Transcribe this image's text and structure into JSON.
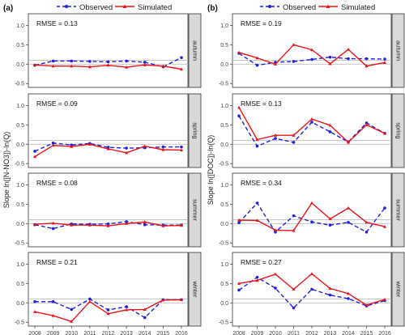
{
  "legend": {
    "observed_label": "Observed",
    "simulated_label": "Simulated",
    "observed_color": "#1f1fe0",
    "simulated_color": "#e8141a"
  },
  "chart_data": [
    {
      "type": "line",
      "panel_label": "(a)",
      "ylabel": "Slope ln([N-NO3])-ln(Q)",
      "x": [
        2008,
        2009,
        2010,
        2011,
        2012,
        2013,
        2014,
        2015,
        2016
      ],
      "ylim": [
        -0.6,
        1.3
      ],
      "yticks": [
        -0.5,
        0.0,
        0.5,
        1.0
      ],
      "ytick_labels": [
        "-0.5",
        "0.0",
        "0.5",
        "1.0"
      ],
      "grid": false,
      "reference_lines": [
        0.0,
        0.1
      ],
      "legend_position": "top",
      "facets": [
        {
          "season": "autumn",
          "rmse": "RMSE = 0.13",
          "series": [
            {
              "name": "Observed",
              "values": [
                -0.03,
                0.08,
                0.08,
                0.07,
                0.06,
                0.08,
                0.05,
                -0.07,
                0.17
              ]
            },
            {
              "name": "Simulated",
              "values": [
                -0.02,
                -0.05,
                -0.05,
                -0.07,
                -0.03,
                -0.08,
                -0.02,
                -0.05,
                -0.13
              ]
            }
          ]
        },
        {
          "season": "spring",
          "rmse": "RMSE = 0.09",
          "series": [
            {
              "name": "Observed",
              "values": [
                -0.18,
                0.03,
                -0.02,
                0.02,
                -0.08,
                -0.1,
                -0.09,
                -0.07,
                -0.07
              ]
            },
            {
              "name": "Simulated",
              "values": [
                -0.32,
                -0.03,
                -0.06,
                0.0,
                -0.12,
                -0.22,
                -0.05,
                -0.14,
                -0.15
              ]
            }
          ]
        },
        {
          "season": "summer",
          "rmse": "RMSE = 0.08",
          "series": [
            {
              "name": "Observed",
              "values": [
                -0.03,
                -0.13,
                -0.01,
                -0.02,
                -0.01,
                0.05,
                -0.03,
                -0.04,
                -0.04
              ]
            },
            {
              "name": "Simulated",
              "values": [
                -0.02,
                0.01,
                -0.04,
                -0.04,
                -0.06,
                0.0,
                0.04,
                -0.06,
                -0.05
              ]
            }
          ]
        },
        {
          "season": "winter",
          "rmse": "RMSE = 0.21",
          "series": [
            {
              "name": "Observed",
              "values": [
                0.03,
                0.03,
                -0.17,
                0.1,
                -0.18,
                -0.1,
                -0.38,
                0.08,
                0.08
              ]
            },
            {
              "name": "Simulated",
              "values": [
                -0.23,
                -0.33,
                -0.48,
                0.03,
                -0.28,
                -0.18,
                -0.17,
                0.07,
                0.08
              ]
            }
          ]
        }
      ]
    },
    {
      "type": "line",
      "panel_label": "(b)",
      "ylabel": "Slope ln([DOC])-ln(Q)",
      "x": [
        2008,
        2009,
        2010,
        2011,
        2012,
        2013,
        2014,
        2015,
        2016
      ],
      "ylim": [
        -0.6,
        1.3
      ],
      "yticks": [
        -0.5,
        0.0,
        0.5,
        1.0
      ],
      "ytick_labels": [
        "-0.5",
        "0.0",
        "0.5",
        "1.0"
      ],
      "grid": false,
      "reference_lines": [
        0.0,
        0.1
      ],
      "legend_position": "top",
      "facets": [
        {
          "season": "autumn",
          "rmse": "RMSE = 0.19",
          "series": [
            {
              "name": "Observed",
              "values": [
                0.28,
                -0.03,
                0.05,
                0.07,
                0.12,
                0.18,
                0.14,
                0.14,
                0.13
              ]
            },
            {
              "name": "Simulated",
              "values": [
                0.3,
                0.16,
                0.0,
                0.5,
                0.37,
                0.01,
                0.38,
                -0.05,
                0.04
              ]
            }
          ]
        },
        {
          "season": "spring",
          "rmse": "RMSE = 0.13",
          "series": [
            {
              "name": "Observed",
              "values": [
                0.73,
                -0.05,
                0.15,
                0.05,
                0.57,
                0.32,
                0.06,
                0.55,
                0.28
              ]
            },
            {
              "name": "Simulated",
              "values": [
                0.95,
                0.12,
                0.23,
                0.23,
                0.65,
                0.49,
                0.05,
                0.5,
                0.28
              ]
            }
          ]
        },
        {
          "season": "summer",
          "rmse": "RMSE = 0.34",
          "series": [
            {
              "name": "Observed",
              "values": [
                0.02,
                0.53,
                -0.22,
                0.2,
                0.04,
                -0.04,
                0.03,
                -0.22,
                0.4
              ]
            },
            {
              "name": "Simulated",
              "values": [
                0.09,
                0.08,
                -0.17,
                -0.18,
                0.53,
                0.12,
                0.4,
                0.03,
                -0.08
              ]
            }
          ]
        },
        {
          "season": "winter",
          "rmse": "RMSE = 0.27",
          "series": [
            {
              "name": "Observed",
              "values": [
                0.33,
                0.66,
                0.38,
                -0.13,
                0.35,
                0.2,
                0.11,
                -0.08,
                0.06
              ]
            },
            {
              "name": "Simulated",
              "values": [
                0.5,
                0.58,
                0.74,
                0.35,
                0.75,
                0.37,
                0.24,
                -0.06,
                0.09
              ]
            }
          ]
        }
      ]
    }
  ]
}
